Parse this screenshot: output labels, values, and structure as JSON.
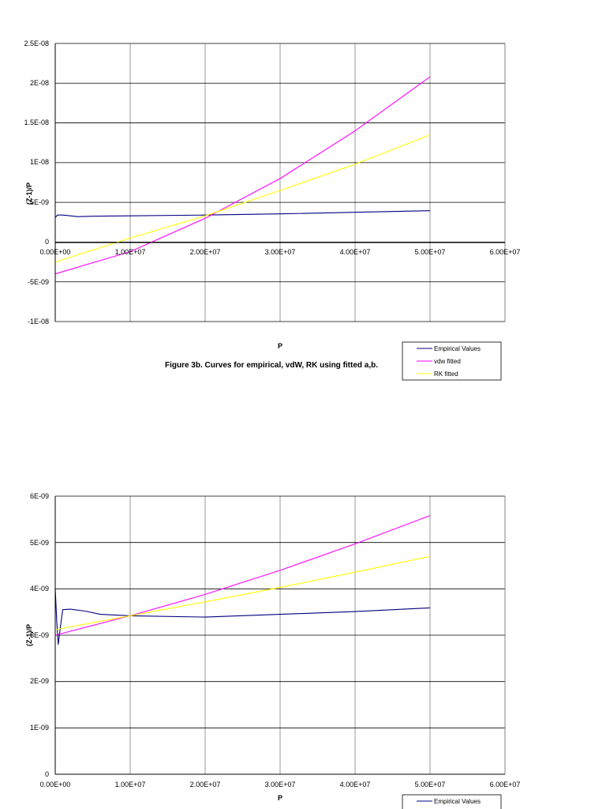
{
  "charts": {
    "0": {
      "caption": "Figure 3b. Curves for empirical, vdW, RK using fitted a,b.",
      "xlabel": "P",
      "ylabel": "(Z-1)/P",
      "x_ticks": [
        "0.00E+00",
        "1.00E+07",
        "2.00E+07",
        "3.00E+07",
        "4.00E+07",
        "5.00E+07",
        "6.00E+07"
      ],
      "y_ticks": [
        "2.5E-08",
        "2E-08",
        "1.5E-08",
        "1E-08",
        "5E-09",
        "0",
        "-5E-09",
        "-1E-08"
      ],
      "legend": [
        "Empirical Values",
        "vdw fitted",
        "RK fitted"
      ]
    },
    "1": {
      "xlabel": "P",
      "ylabel": "(Z-1)/P",
      "x_ticks": [
        "0.00E+00",
        "1.00E+07",
        "2.00E+07",
        "3.00E+07",
        "4.00E+07",
        "5.00E+07",
        "6.00E+07"
      ],
      "y_ticks": [
        "6E-09",
        "5E-09",
        "4E-09",
        "3E-09",
        "2E-09",
        "1E-09",
        "0"
      ],
      "legend": [
        "Empirical Values"
      ]
    }
  },
  "colors": {
    "empirical": "#000080",
    "vdw": "#ff00ff",
    "rk": "#ffff00",
    "grid": "#808080",
    "axis": "#000000"
  },
  "chart_data": [
    {
      "type": "line",
      "xlabel": "P",
      "ylabel": "(Z-1)/P",
      "xlim": [
        0,
        60000000
      ],
      "ylim": [
        -1e-08,
        2.5e-08
      ],
      "grid": true,
      "legend_position": "bottom-right",
      "series": [
        {
          "name": "Empirical Values",
          "x": [
            0,
            300000,
            1000000,
            2000000,
            3000000,
            5000000,
            10000000,
            20000000,
            30000000,
            40000000,
            50000000
          ],
          "y": [
            3.1e-09,
            3.4e-09,
            3.4e-09,
            3.3e-09,
            3.2e-09,
            3.25e-09,
            3.3e-09,
            3.4e-09,
            3.55e-09,
            3.75e-09,
            3.95e-09
          ]
        },
        {
          "name": "vdw fitted",
          "x": [
            0,
            10000000,
            20000000,
            30000000,
            40000000,
            50000000
          ],
          "y": [
            -4e-09,
            -1.2e-09,
            3e-09,
            8e-09,
            1.4e-08,
            2.08e-08
          ]
        },
        {
          "name": "RK fitted",
          "x": [
            0,
            10000000,
            20000000,
            30000000,
            40000000,
            50000000
          ],
          "y": [
            -2.5e-09,
            5e-10,
            3.3e-09,
            6.5e-09,
            9.8e-09,
            1.35e-08
          ]
        }
      ]
    },
    {
      "type": "line",
      "xlabel": "P",
      "ylabel": "(Z-1)/P",
      "xlim": [
        0,
        60000000
      ],
      "ylim": [
        0,
        6e-09
      ],
      "grid": true,
      "legend_position": "bottom-right",
      "series": [
        {
          "name": "Empirical Values",
          "x": [
            0,
            200000,
            400000,
            700000,
            1000000,
            2000000,
            4000000,
            6000000,
            10000000,
            20000000,
            30000000,
            40000000,
            50000000
          ],
          "y": [
            4e-09,
            3.3e-09,
            2.8e-09,
            3.2e-09,
            3.55e-09,
            3.56e-09,
            3.52e-09,
            3.45e-09,
            3.42e-09,
            3.39e-09,
            3.45e-09,
            3.51e-09,
            3.59e-09
          ]
        },
        {
          "name": "vdw fitted",
          "x": [
            0,
            10000000,
            20000000,
            30000000,
            40000000,
            50000000
          ],
          "y": [
            3e-09,
            3.42e-09,
            3.88e-09,
            4.4e-09,
            4.97e-09,
            5.58e-09
          ]
        },
        {
          "name": "RK fitted",
          "x": [
            0,
            10000000,
            20000000,
            30000000,
            40000000,
            50000000
          ],
          "y": [
            3.12e-09,
            3.42e-09,
            3.72e-09,
            4.03e-09,
            4.36e-09,
            4.7e-09
          ]
        }
      ]
    }
  ]
}
